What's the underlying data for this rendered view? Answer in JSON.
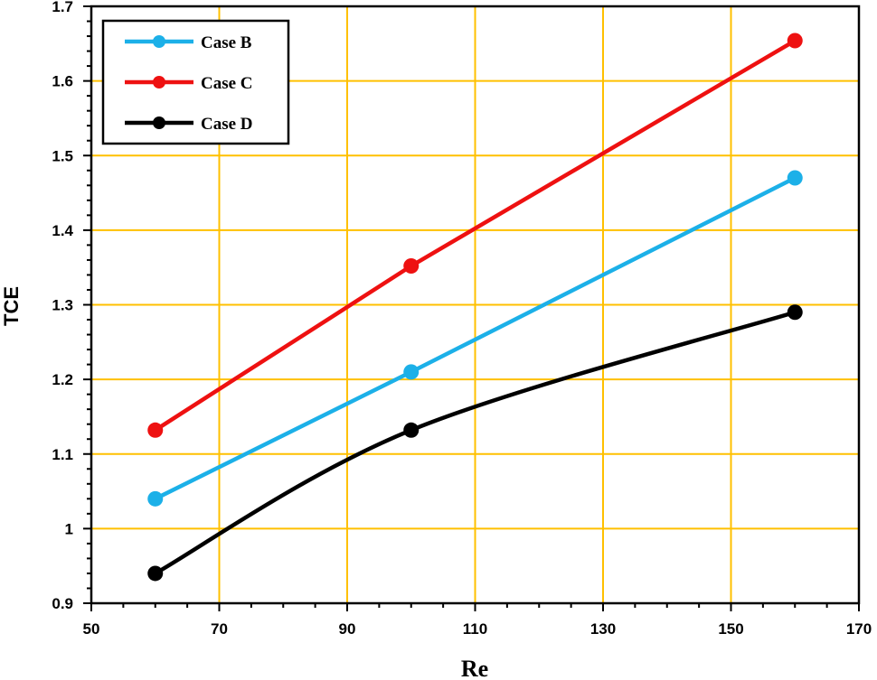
{
  "chart_data": {
    "type": "line",
    "title": "",
    "xlabel": "Re",
    "ylabel": "TCE",
    "xlim": [
      50,
      170
    ],
    "ylim": [
      0.9,
      1.7
    ],
    "xticks": [
      "50",
      "70",
      "90",
      "110",
      "130",
      "150",
      "170"
    ],
    "yticks": [
      "0.9",
      "1",
      "1.1",
      "1.2",
      "1.3",
      "1.4",
      "1.5",
      "1.6",
      "1.7"
    ],
    "grid": true,
    "grid_color": "#FFC000",
    "legend_position": "top-left",
    "x": [
      60,
      100,
      160
    ],
    "series": [
      {
        "name": "Case B",
        "color": "#1CB0E8",
        "values": [
          1.04,
          1.21,
          1.47
        ],
        "smooth": false
      },
      {
        "name": "Case C",
        "color": "#EE1111",
        "values": [
          1.132,
          1.352,
          1.654
        ],
        "smooth": false
      },
      {
        "name": "Case D",
        "color": "#000000",
        "values": [
          0.94,
          1.132,
          1.29
        ],
        "smooth": true
      }
    ]
  }
}
